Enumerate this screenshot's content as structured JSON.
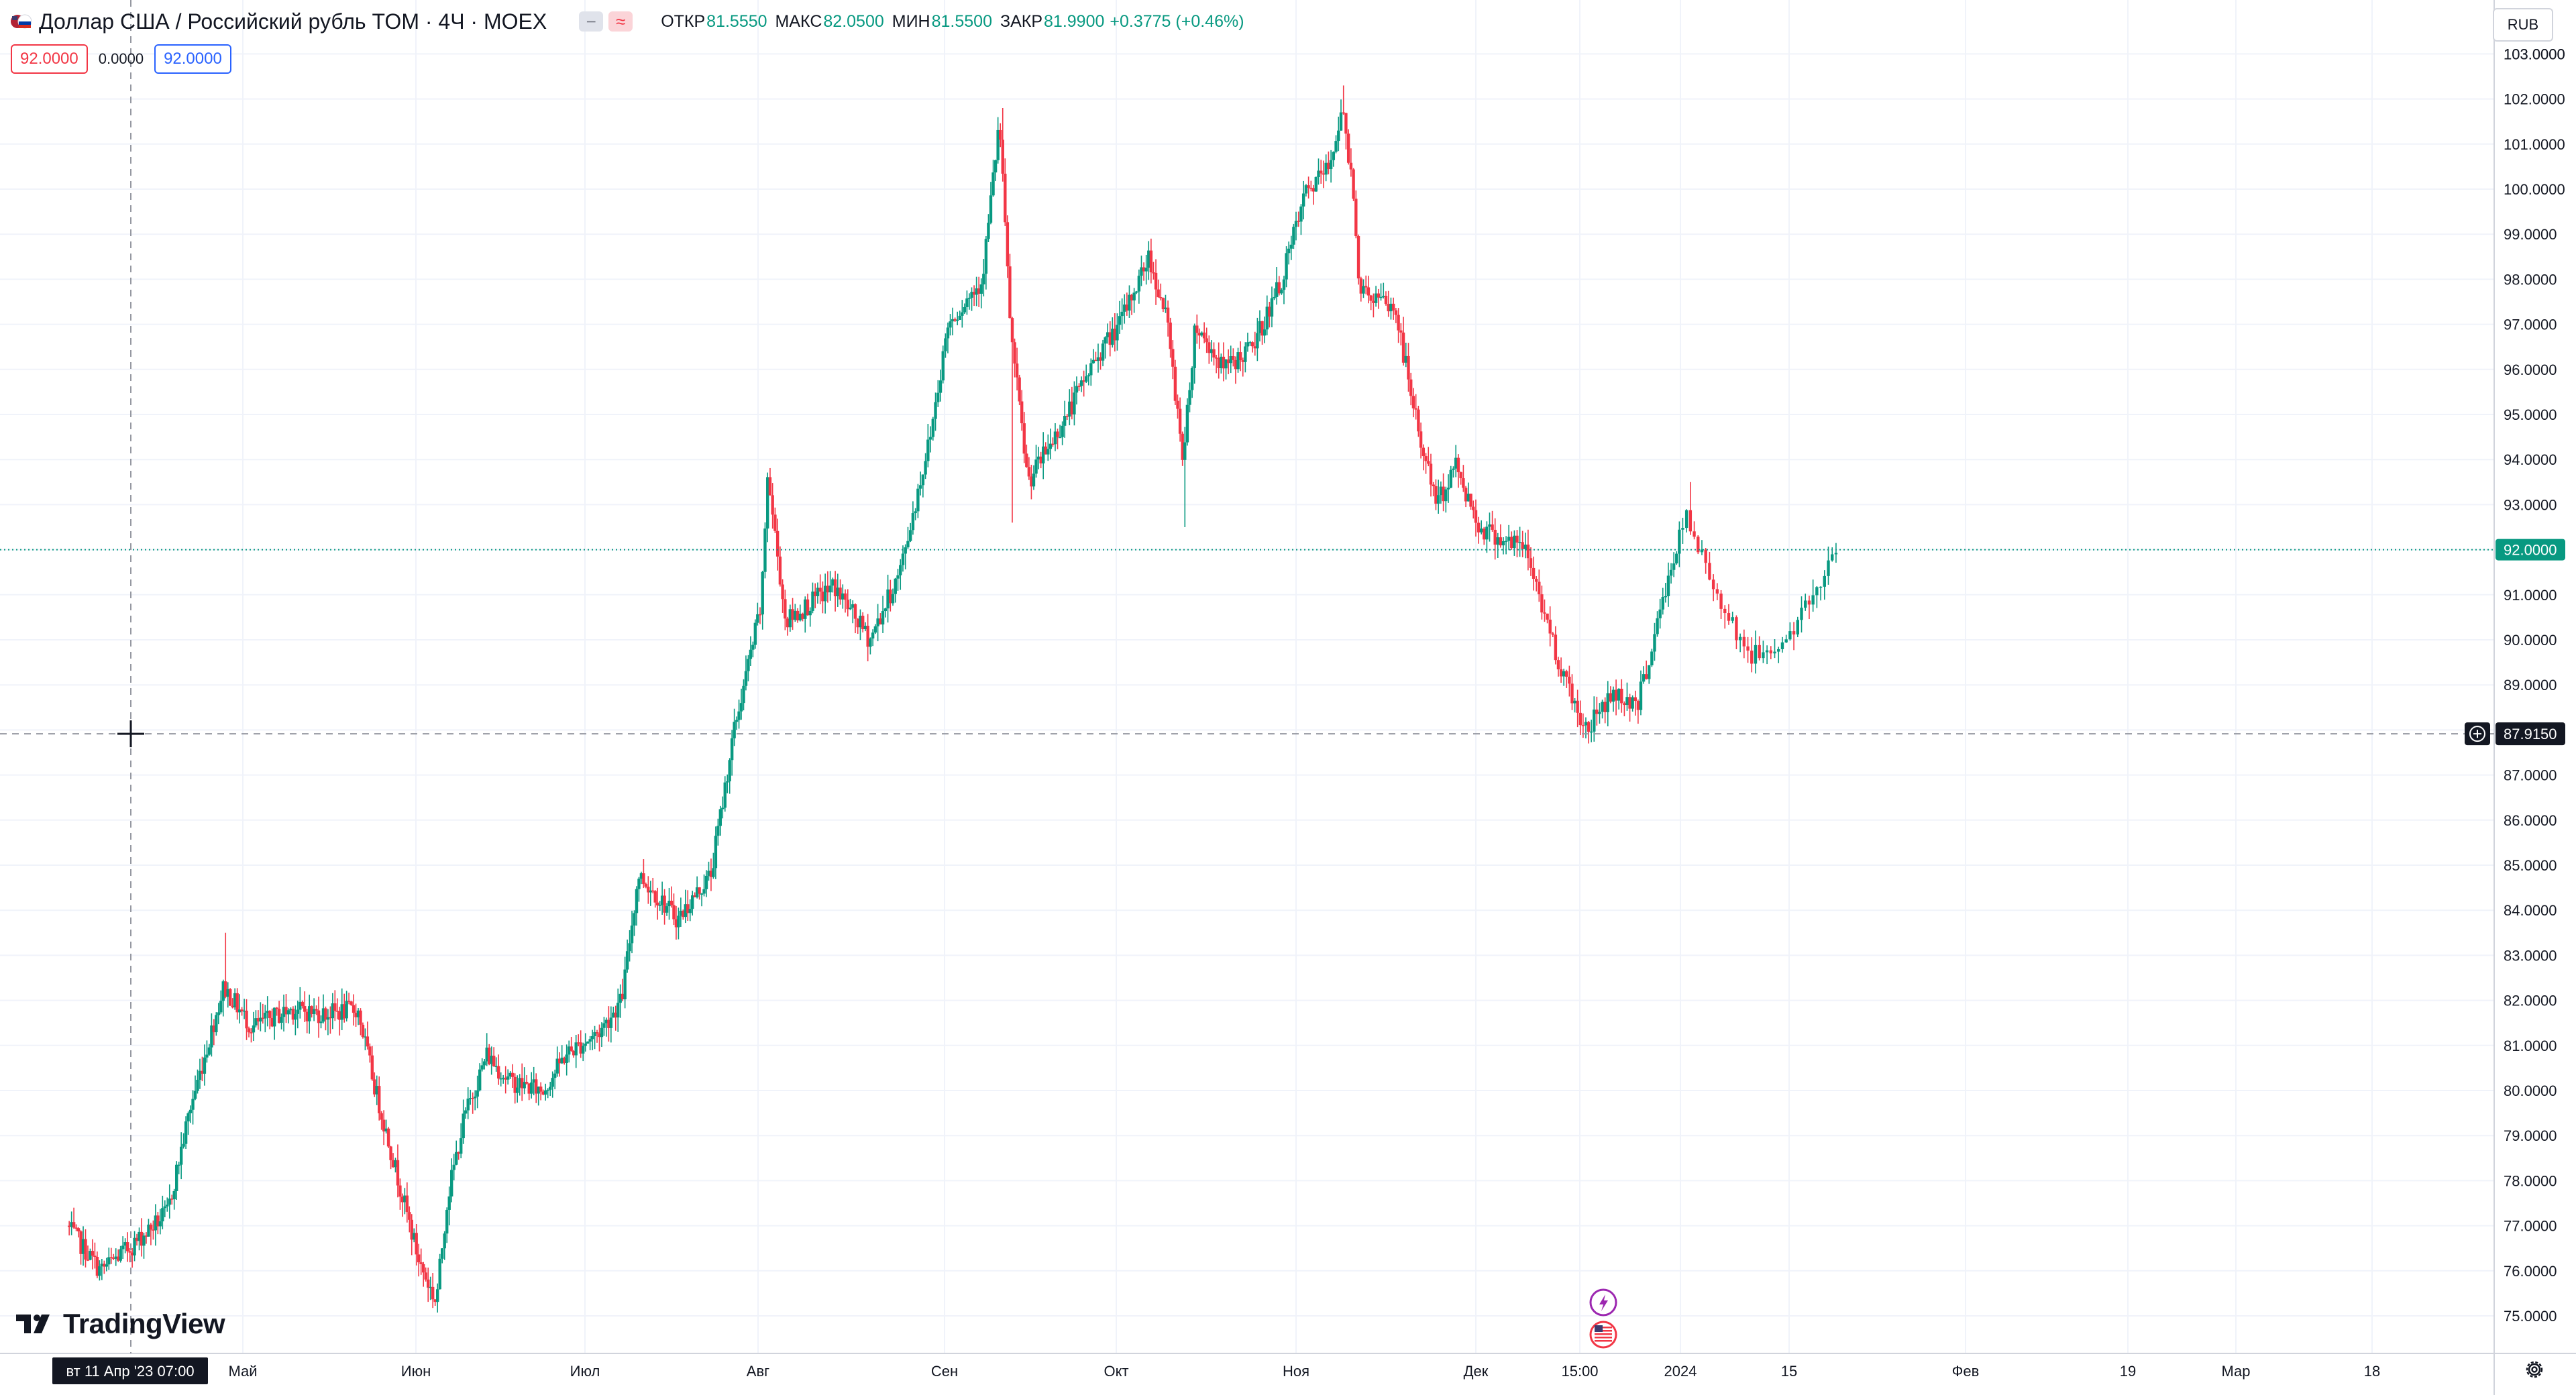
{
  "header": {
    "symbol_title": "Доллар США / Российский рубль TOM · 4Ч · MOEX",
    "flag_icon": "us-ru-flag-icon",
    "buttons": [
      {
        "icon": "minus-icon",
        "label": "−"
      },
      {
        "icon": "approx-icon",
        "label": "≈"
      }
    ],
    "ohlc": [
      {
        "label": "ОТКР",
        "value": "81.5550"
      },
      {
        "label": "МАКС",
        "value": "82.0500"
      },
      {
        "label": "МИН",
        "value": "81.5500"
      },
      {
        "label": "ЗАКР",
        "value": "81.9900"
      },
      {
        "label": "",
        "value": "+0.3775 (+0.46%)"
      }
    ]
  },
  "trade": {
    "sell_price": "92.0000",
    "spread": "0.0000",
    "buy_price": "92.0000"
  },
  "currency_button": "RUB",
  "branding": "TradingView",
  "crosshair": {
    "price_label": "87.9150",
    "time_label": "вт 11 Апр '23   07:00"
  },
  "last_price_label": "92.0000",
  "events": [
    {
      "icon": "lightning-icon"
    },
    {
      "icon": "us-flag-icon"
    }
  ],
  "colors": {
    "up": "#089981",
    "down": "#f23645",
    "grid": "#f0f3fa",
    "crosshair": "#9598a1"
  },
  "chart_data": {
    "type": "candlestick",
    "title": "Доллар США / Российский рубль TOM · 4Ч · MOEX",
    "ylim": [
      74.5,
      103.2
    ],
    "y_ticks": [
      "75.0000",
      "76.0000",
      "77.0000",
      "78.0000",
      "79.0000",
      "80.0000",
      "81.0000",
      "82.0000",
      "83.0000",
      "84.0000",
      "85.0000",
      "86.0000",
      "87.0000",
      "88.0000",
      "89.0000",
      "90.0000",
      "91.0000",
      "92.0000",
      "93.0000",
      "94.0000",
      "95.0000",
      "96.0000",
      "97.0000",
      "98.0000",
      "99.0000",
      "100.0000",
      "101.0000",
      "102.0000",
      "103.0000"
    ],
    "x_ticks": [
      "Май",
      "Июн",
      "Июл",
      "Авг",
      "Сен",
      "Окт",
      "Ноя",
      "Дек",
      "15:00",
      "2024",
      "15",
      "Фев",
      "19",
      "Мар",
      "18"
    ],
    "last_price": 92.0,
    "crosshair_price": 87.915,
    "anchors": [
      [
        "2023-03-31",
        77.0
      ],
      [
        "2023-04-06",
        76.0
      ],
      [
        "2023-04-12",
        76.6
      ],
      [
        "2023-04-18",
        77.3
      ],
      [
        "2023-04-22",
        79.6
      ],
      [
        "2023-04-28",
        82.3
      ],
      [
        "2023-05-03",
        81.4
      ],
      [
        "2023-05-10",
        81.8
      ],
      [
        "2023-05-16",
        81.7
      ],
      [
        "2023-05-22",
        81.8
      ],
      [
        "2023-05-25",
        80.1
      ],
      [
        "2023-06-02",
        76.2
      ],
      [
        "2023-06-05",
        75.3
      ],
      [
        "2023-06-07",
        77.6
      ],
      [
        "2023-06-10",
        79.4
      ],
      [
        "2023-06-14",
        80.8
      ],
      [
        "2023-06-18",
        80.2
      ],
      [
        "2023-06-24",
        80.0
      ],
      [
        "2023-06-28",
        80.8
      ],
      [
        "2023-07-04",
        81.3
      ],
      [
        "2023-07-08",
        82.0
      ],
      [
        "2023-07-11",
        84.8
      ],
      [
        "2023-07-18",
        83.8
      ],
      [
        "2023-07-24",
        84.8
      ],
      [
        "2023-07-28",
        87.9
      ],
      [
        "2023-08-02",
        90.8
      ],
      [
        "2023-08-03",
        93.7
      ],
      [
        "2023-08-06",
        90.4
      ],
      [
        "2023-08-10",
        90.8
      ],
      [
        "2023-08-14",
        91.2
      ],
      [
        "2023-08-20",
        90.0
      ],
      [
        "2023-08-25",
        91.5
      ],
      [
        "2023-08-30",
        94.5
      ],
      [
        "2023-09-02",
        97.0
      ],
      [
        "2023-09-08",
        98.0
      ],
      [
        "2023-09-11",
        101.5
      ],
      [
        "2023-09-13",
        96.8
      ],
      [
        "2023-09-16",
        93.5
      ],
      [
        "2023-09-22",
        94.8
      ],
      [
        "2023-09-28",
        96.3
      ],
      [
        "2023-10-02",
        97.0
      ],
      [
        "2023-10-07",
        98.5
      ],
      [
        "2023-10-10",
        97.2
      ],
      [
        "2023-10-13",
        94.0
      ],
      [
        "2023-10-15",
        97.0
      ],
      [
        "2023-10-20",
        96.0
      ],
      [
        "2023-10-25",
        96.5
      ],
      [
        "2023-10-30",
        98.0
      ],
      [
        "2023-11-03",
        99.9
      ],
      [
        "2023-11-07",
        100.5
      ],
      [
        "2023-11-09",
        101.8
      ],
      [
        "2023-11-11",
        100.0
      ],
      [
        "2023-11-12",
        97.8
      ],
      [
        "2023-11-18",
        97.3
      ],
      [
        "2023-11-22",
        94.5
      ],
      [
        "2023-11-25",
        93.0
      ],
      [
        "2023-11-28",
        93.9
      ],
      [
        "2023-12-02",
        92.5
      ],
      [
        "2023-12-06",
        92.2
      ],
      [
        "2023-12-09",
        92.0
      ],
      [
        "2023-12-14",
        89.5
      ],
      [
        "2023-12-18",
        88.0
      ],
      [
        "2023-12-22",
        88.8
      ],
      [
        "2023-12-26",
        88.6
      ],
      [
        "2023-12-30",
        91.0
      ],
      [
        "2024-01-02",
        92.7
      ],
      [
        "2024-01-05",
        91.2
      ],
      [
        "2024-01-09",
        89.6
      ],
      [
        "2024-01-13",
        90.0
      ],
      [
        "2024-01-16",
        91.0
      ],
      [
        "2024-01-18",
        92.0
      ]
    ]
  }
}
